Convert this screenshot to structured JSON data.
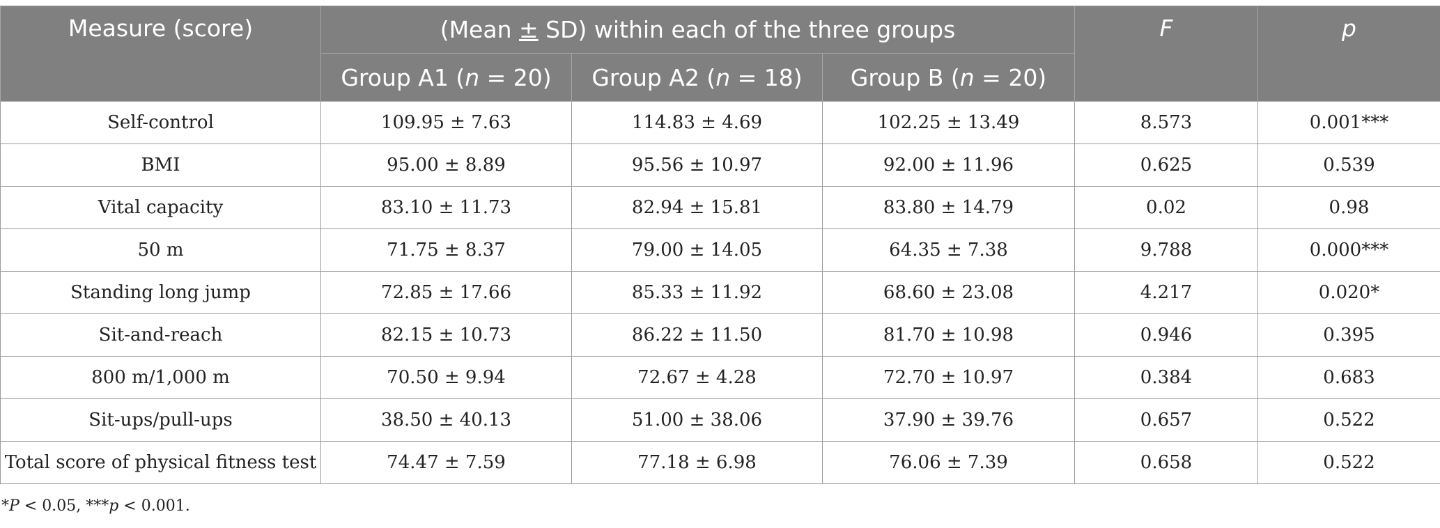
{
  "header": {
    "measure": "Measure (score)",
    "span_pre": "(Mean ",
    "span_pm": "±",
    "span_post": " SD) within each of the three groups",
    "f": "F",
    "p": "p",
    "groups": [
      {
        "pre": "Group A1 (",
        "n": "n",
        "post": " = 20)"
      },
      {
        "pre": "Group A2 (",
        "n": "n",
        "post": " = 18)"
      },
      {
        "pre": "Group B (",
        "n": "n",
        "post": " = 20)"
      }
    ]
  },
  "rows": [
    {
      "measure": "Self-control",
      "a1": "109.95 ± 7.63",
      "a2": "114.83 ± 4.69",
      "b": "102.25 ± 13.49",
      "f": "8.573",
      "p": "0.001***"
    },
    {
      "measure": "BMI",
      "a1": "95.00 ± 8.89",
      "a2": "95.56 ± 10.97",
      "b": "92.00 ± 11.96",
      "f": "0.625",
      "p": "0.539"
    },
    {
      "measure": "Vital capacity",
      "a1": "83.10 ± 11.73",
      "a2": "82.94 ± 15.81",
      "b": "83.80 ± 14.79",
      "f": "0.02",
      "p": "0.98"
    },
    {
      "measure": "50 m",
      "a1": "71.75 ± 8.37",
      "a2": "79.00 ± 14.05",
      "b": "64.35 ± 7.38",
      "f": "9.788",
      "p": "0.000***"
    },
    {
      "measure": "Standing long jump",
      "a1": "72.85 ± 17.66",
      "a2": "85.33 ± 11.92",
      "b": "68.60 ± 23.08",
      "f": "4.217",
      "p": "0.020*"
    },
    {
      "measure": "Sit-and-reach",
      "a1": "82.15 ± 10.73",
      "a2": "86.22 ± 11.50",
      "b": "81.70 ± 10.98",
      "f": "0.946",
      "p": "0.395"
    },
    {
      "measure": "800 m/1,000 m",
      "a1": "70.50 ± 9.94",
      "a2": "72.67 ± 4.28",
      "b": "72.70 ± 10.97",
      "f": "0.384",
      "p": "0.683"
    },
    {
      "measure": "Sit-ups/pull-ups",
      "a1": "38.50 ± 40.13",
      "a2": "51.00 ± 38.06",
      "b": "37.90 ± 39.76",
      "f": "0.657",
      "p": "0.522"
    },
    {
      "measure": "Total score of physical fitness test",
      "a1": "74.47 ± 7.59",
      "a2": "77.18 ± 6.98",
      "b": "76.06 ± 7.39",
      "f": "0.658",
      "p": "0.522"
    }
  ],
  "footnote": {
    "s1": "*",
    "s2": "P",
    "s3": " < 0.05, ***",
    "s4": "p",
    "s5": " < 0.001."
  }
}
